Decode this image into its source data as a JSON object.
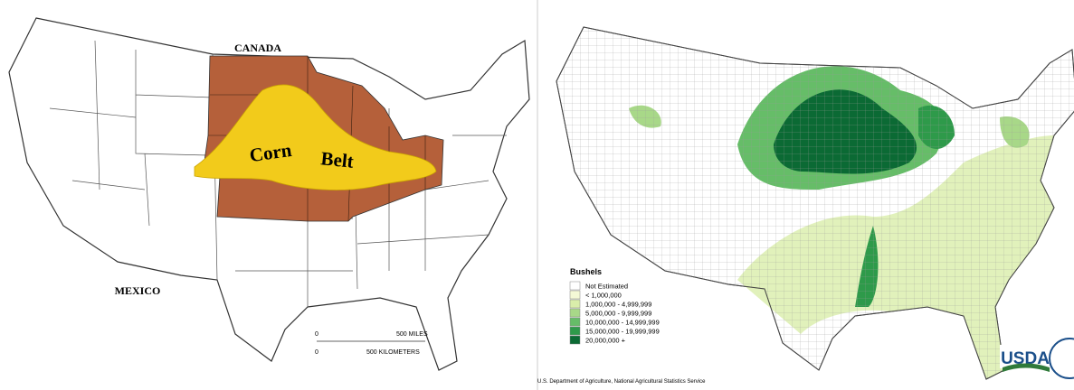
{
  "left_map": {
    "labels": {
      "canada": "CANADA",
      "corn": "Corn",
      "belt": "Belt",
      "mexico": "MEXICO"
    },
    "scale": {
      "miles_zero": "0",
      "miles": "500 MILES",
      "km_zero": "0",
      "km": "500 KILOMETERS"
    }
  },
  "right_map": {
    "legend": {
      "title": "Bushels",
      "items": [
        {
          "label": "Not Estimated",
          "color": "#ffffff"
        },
        {
          "label": "< 1,000,000",
          "color": "#f4f9d6"
        },
        {
          "label": "1,000,000 -  4,999,999",
          "color": "#d9edaa"
        },
        {
          "label": "5,000,000 -  9,999,999",
          "color": "#a8d888"
        },
        {
          "label": "10,000,000 - 14,999,999",
          "color": "#66bd68"
        },
        {
          "label": "15,000,000 - 19,999,999",
          "color": "#2e9a4a"
        },
        {
          "label": "20,000,000 +",
          "color": "#0b6a34"
        }
      ]
    },
    "source": "U.S. Department of Agriculture, National Agricultural Statistics Service",
    "logo": "USDA"
  }
}
